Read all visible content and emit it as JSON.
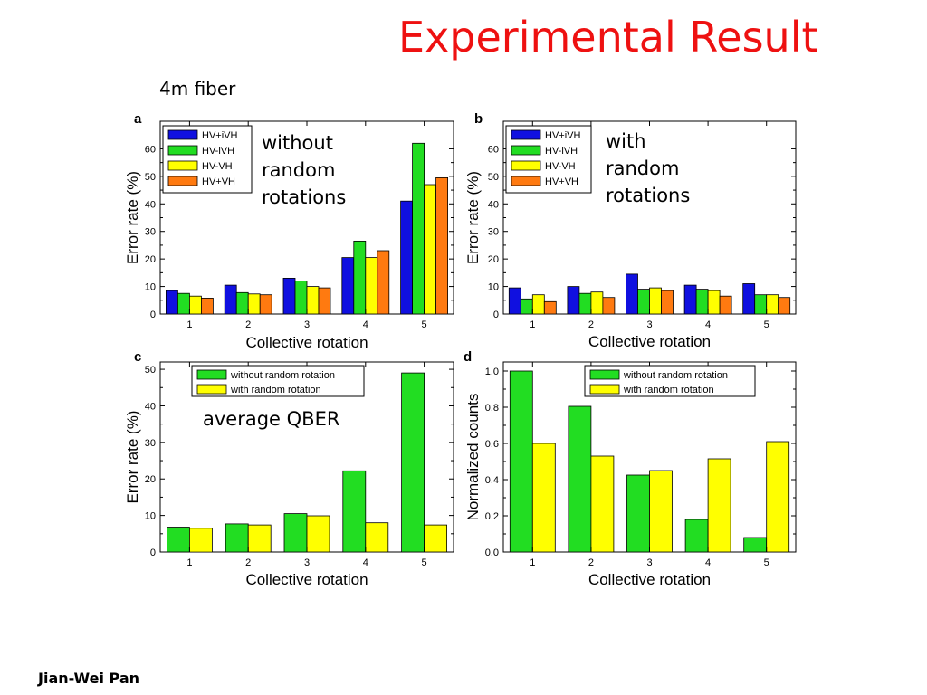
{
  "slide": {
    "title": "Experimental Result",
    "subtitle": "4m fiber",
    "annotation_a": [
      "without",
      "random",
      "rotations"
    ],
    "annotation_b": [
      "with",
      "random",
      "rotations"
    ],
    "annotation_c": "average QBER",
    "author": "Jian-Wei Pan"
  },
  "colors": {
    "HV+iVH": "#1010e0",
    "HV-iVH": "#22dd22",
    "HV-VH": "#ffff00",
    "HV+VH": "#ff7a10",
    "without random rotation": "#22dd22",
    "with random rotation": "#ffff00"
  },
  "chart_data": [
    {
      "panel": "a",
      "type": "bar",
      "xlabel": "Collective rotation",
      "ylabel": "Error rate (%)",
      "categories": [
        "1",
        "2",
        "3",
        "4",
        "5"
      ],
      "ylim": [
        0,
        70
      ],
      "yticks": [
        0,
        10,
        20,
        30,
        40,
        50,
        60
      ],
      "legend": "top-left",
      "series": [
        {
          "name": "HV+iVH",
          "values": [
            8.5,
            10.5,
            13,
            20.5,
            41
          ]
        },
        {
          "name": "HV-iVH",
          "values": [
            7.5,
            7.8,
            12,
            26.5,
            62
          ]
        },
        {
          "name": "HV-VH",
          "values": [
            6.5,
            7.3,
            10,
            20.5,
            47
          ]
        },
        {
          "name": "HV+VH",
          "values": [
            5.8,
            7,
            9.5,
            23,
            49.5
          ]
        }
      ]
    },
    {
      "panel": "b",
      "type": "bar",
      "xlabel": "Collective rotation",
      "ylabel": "Error rate (%)",
      "categories": [
        "1",
        "2",
        "3",
        "4",
        "5"
      ],
      "ylim": [
        0,
        70
      ],
      "yticks": [
        0,
        10,
        20,
        30,
        40,
        50,
        60
      ],
      "legend": "top-left",
      "series": [
        {
          "name": "HV+iVH",
          "values": [
            9.5,
            10,
            14.5,
            10.5,
            11
          ]
        },
        {
          "name": "HV-iVH",
          "values": [
            5.5,
            7.5,
            9,
            9,
            7
          ]
        },
        {
          "name": "HV-VH",
          "values": [
            7,
            8,
            9.5,
            8.5,
            7
          ]
        },
        {
          "name": "HV+VH",
          "values": [
            4.5,
            6,
            8.5,
            6.5,
            6
          ]
        }
      ]
    },
    {
      "panel": "c",
      "type": "bar",
      "xlabel": "Collective rotation",
      "ylabel": "Error rate (%)",
      "categories": [
        "1",
        "2",
        "3",
        "4",
        "5"
      ],
      "ylim": [
        0,
        52
      ],
      "yticks": [
        0,
        10,
        20,
        30,
        40,
        50
      ],
      "legend": "top-center",
      "series": [
        {
          "name": "without random rotation",
          "values": [
            6.8,
            7.7,
            10.5,
            22.2,
            49
          ]
        },
        {
          "name": "with random rotation",
          "values": [
            6.5,
            7.4,
            9.9,
            8,
            7.4
          ]
        }
      ]
    },
    {
      "panel": "d",
      "type": "bar",
      "xlabel": "Collective rotation",
      "ylabel": "Normalized counts",
      "categories": [
        "1",
        "2",
        "3",
        "4",
        "5"
      ],
      "ylim": [
        0,
        1.05
      ],
      "yticks": [
        0.0,
        0.2,
        0.4,
        0.6,
        0.8,
        1.0
      ],
      "yticklabels": [
        "0.0",
        "0.2",
        "0.4",
        "0.6",
        "0.8",
        "1.0"
      ],
      "legend": "top-center",
      "series": [
        {
          "name": "without random rotation",
          "values": [
            1.0,
            0.805,
            0.425,
            0.18,
            0.08
          ]
        },
        {
          "name": "with random rotation",
          "values": [
            0.6,
            0.53,
            0.45,
            0.515,
            0.61
          ]
        }
      ]
    }
  ]
}
